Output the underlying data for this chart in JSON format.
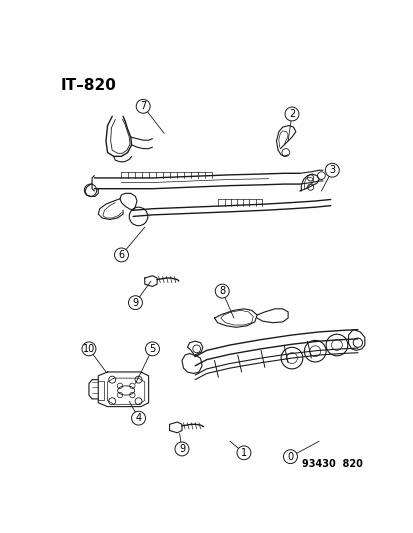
{
  "title": "IT–820",
  "subtitle": "93430  820",
  "bg_color": "#ffffff",
  "title_fontsize": 11,
  "subtitle_fontsize": 7
}
